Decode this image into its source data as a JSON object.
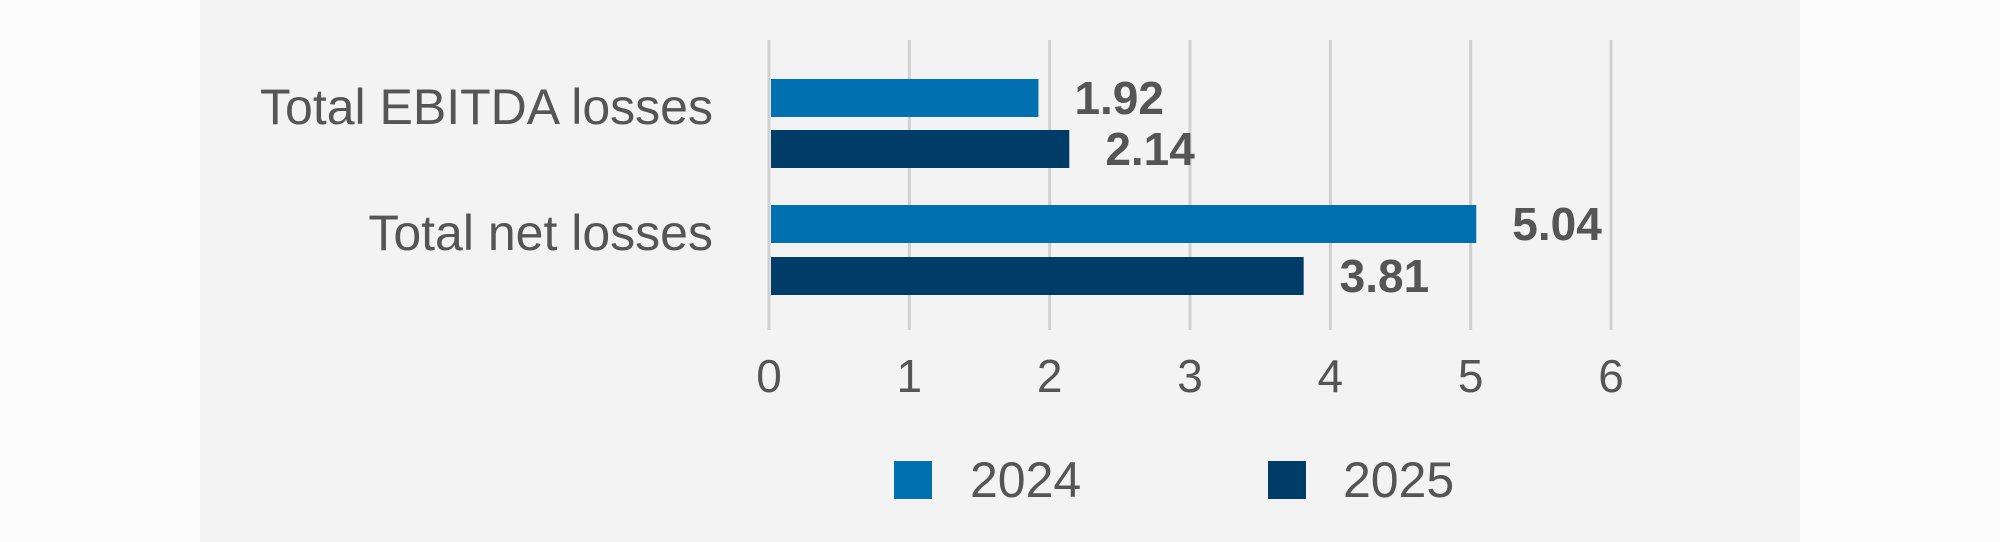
{
  "colors": {
    "page_background": "#fbfbfb",
    "panel_background": "#f3f3f3",
    "series_2024": "#0070b0",
    "series_2025": "#003c68",
    "gridline": "#d0d0d0",
    "text": "#555555"
  },
  "chart_data": {
    "type": "bar",
    "orientation": "horizontal",
    "title": "",
    "xlabel": "",
    "ylabel": "",
    "categories": [
      "Total EBITDA losses",
      "Total net losses"
    ],
    "series": [
      {
        "name": "2024",
        "values": [
          1.92,
          5.04
        ],
        "labels": [
          "1.92",
          "5.04"
        ]
      },
      {
        "name": "2025",
        "values": [
          2.14,
          3.81
        ],
        "labels": [
          "2.14",
          "3.81"
        ]
      }
    ],
    "xlim": [
      0,
      6
    ],
    "ticks": [
      "0",
      "1",
      "2",
      "3",
      "4",
      "5",
      "6"
    ],
    "grid": "vertical",
    "legend_position": "bottom"
  }
}
